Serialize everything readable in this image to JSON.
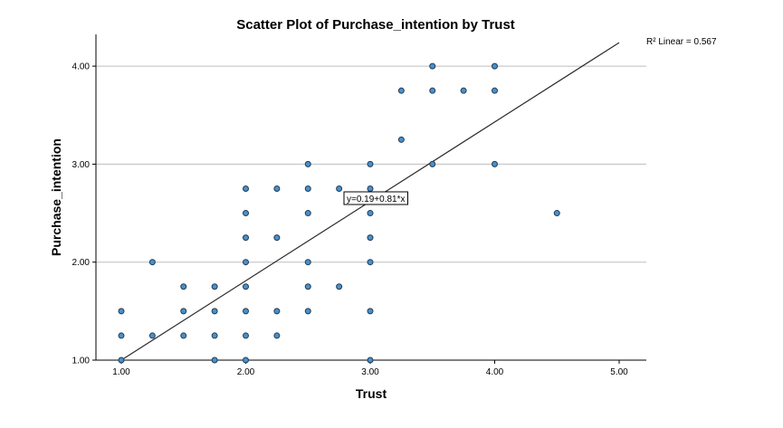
{
  "chart_data": {
    "type": "scatter",
    "title": "Scatter Plot of Purchase_intention by Trust",
    "xlabel": "Trust",
    "ylabel": "Purchase_intention",
    "xlim": [
      0.8,
      5.2
    ],
    "ylim": [
      1.0,
      4.32
    ],
    "xticks": [
      "1.00",
      "2.00",
      "3.00",
      "4.00",
      "5.00"
    ],
    "yticks": [
      "1.00",
      "2.00",
      "3.00",
      "4.00"
    ],
    "grid": "horizontal",
    "r2_label": "R² Linear = 0.567",
    "fit_equation": "y=0.19+0.81*x",
    "fit": {
      "intercept": 0.19,
      "slope": 0.81
    },
    "points": [
      [
        1.0,
        1.0
      ],
      [
        1.0,
        1.25
      ],
      [
        1.0,
        1.5
      ],
      [
        1.25,
        1.25
      ],
      [
        1.25,
        2.0
      ],
      [
        1.5,
        1.25
      ],
      [
        1.5,
        1.5
      ],
      [
        1.5,
        1.75
      ],
      [
        1.75,
        1.0
      ],
      [
        1.75,
        1.25
      ],
      [
        1.75,
        1.5
      ],
      [
        1.75,
        1.75
      ],
      [
        2.0,
        1.0
      ],
      [
        2.0,
        1.25
      ],
      [
        2.0,
        1.5
      ],
      [
        2.0,
        1.75
      ],
      [
        2.0,
        2.0
      ],
      [
        2.0,
        2.25
      ],
      [
        2.0,
        2.5
      ],
      [
        2.0,
        2.75
      ],
      [
        2.25,
        1.25
      ],
      [
        2.25,
        1.5
      ],
      [
        2.25,
        2.25
      ],
      [
        2.25,
        2.75
      ],
      [
        2.5,
        1.5
      ],
      [
        2.5,
        1.75
      ],
      [
        2.5,
        2.0
      ],
      [
        2.5,
        2.5
      ],
      [
        2.5,
        2.75
      ],
      [
        2.5,
        3.0
      ],
      [
        2.75,
        1.75
      ],
      [
        2.75,
        2.75
      ],
      [
        3.0,
        1.0
      ],
      [
        3.0,
        1.5
      ],
      [
        3.0,
        2.0
      ],
      [
        3.0,
        2.25
      ],
      [
        3.0,
        2.5
      ],
      [
        3.0,
        2.75
      ],
      [
        3.0,
        3.0
      ],
      [
        3.25,
        3.25
      ],
      [
        3.25,
        3.75
      ],
      [
        3.5,
        3.0
      ],
      [
        3.5,
        3.75
      ],
      [
        3.5,
        4.0
      ],
      [
        3.75,
        3.75
      ],
      [
        4.0,
        3.0
      ],
      [
        4.0,
        3.75
      ],
      [
        4.0,
        4.0
      ],
      [
        4.5,
        2.5
      ]
    ]
  }
}
